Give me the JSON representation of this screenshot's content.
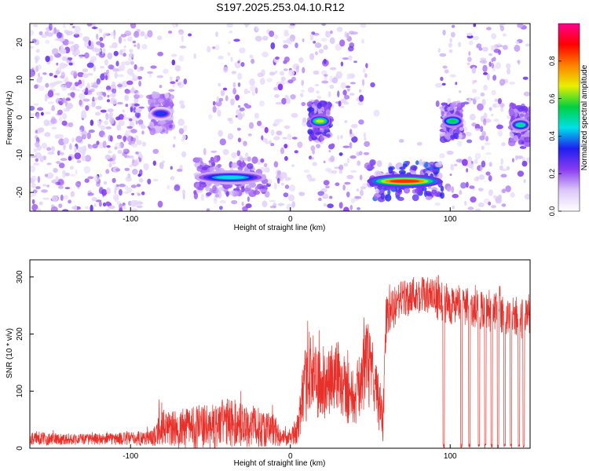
{
  "title": "S197.2025.253.04.10.R12",
  "chart_data": [
    {
      "type": "heatmap",
      "xlabel": "Height of straight line (km)",
      "ylabel": "Frequency (Hz)",
      "xlim": [
        -163,
        150
      ],
      "ylim": [
        -25,
        25
      ],
      "xticks": [
        -100,
        0,
        100
      ],
      "xtick_labels": [
        "-100",
        "0",
        "100"
      ],
      "yticks": [
        -20,
        -10,
        0,
        10,
        20
      ],
      "ytick_labels": [
        "-20",
        "-10",
        "0",
        "10",
        "20"
      ],
      "colorbar": {
        "label": "Normalized spectral amplitude",
        "range": [
          0,
          1
        ],
        "ticks": [
          0.0,
          0.2,
          0.4,
          0.6,
          0.8
        ],
        "tick_labels": [
          "0.0",
          "0.2",
          "0.4",
          "0.6",
          "0.8"
        ],
        "colors": [
          "#ffffff",
          "#dcc8f8",
          "#8a3cf0",
          "#1e1ef0",
          "#00e0e8",
          "#00d040",
          "#e8f000",
          "#ff8000",
          "#ff0000",
          "#ff0090"
        ]
      },
      "features": [
        {
          "x_range": [
            -163,
            -92
          ],
          "freq_range": [
            -25,
            25
          ],
          "amplitude": 0.2,
          "description": "broadband background noise"
        },
        {
          "x_range": [
            -88,
            -74
          ],
          "freq_center": 1,
          "amplitude": 0.35
        },
        {
          "x_range": [
            -60,
            -15
          ],
          "freq_center": -16,
          "amplitude": 0.45
        },
        {
          "x_range": [
            12,
            25
          ],
          "freq_center": -1,
          "amplitude": 0.65
        },
        {
          "x_range": [
            48,
            95
          ],
          "freq_center": -17,
          "amplitude": 0.85
        },
        {
          "x_range": [
            95,
            108
          ],
          "freq_center": -1,
          "amplitude": 0.55
        },
        {
          "x_range": [
            138,
            150
          ],
          "freq_center": -2,
          "amplitude": 0.5
        }
      ]
    },
    {
      "type": "line",
      "xlabel": "Height of straight line (km)",
      "ylabel": "SNR (10 * v/v)",
      "xlim": [
        -163,
        150
      ],
      "ylim": [
        0,
        330
      ],
      "xticks": [
        -100,
        0,
        100
      ],
      "xtick_labels": [
        "-100",
        "0",
        "100"
      ],
      "yticks": [
        0,
        100,
        200,
        300
      ],
      "ytick_labels": [
        "0",
        "100",
        "200",
        "300"
      ],
      "color": "#e8302a",
      "series": [
        {
          "name": "SNR",
          "x": [
            -163,
            -140,
            -120,
            -100,
            -85,
            -82,
            -78,
            -70,
            -60,
            -50,
            -40,
            -30,
            -20,
            -10,
            -5,
            0,
            5,
            8,
            12,
            15,
            20,
            25,
            30,
            35,
            40,
            45,
            48,
            50,
            55,
            58,
            60,
            65,
            70,
            80,
            90,
            95,
            100,
            105,
            110,
            115,
            120,
            125,
            130,
            135,
            140,
            145,
            150
          ],
          "mean": [
            18,
            17,
            17,
            18,
            20,
            45,
            38,
            35,
            42,
            40,
            50,
            45,
            40,
            35,
            20,
            18,
            40,
            95,
            150,
            130,
            110,
            120,
            140,
            110,
            90,
            130,
            160,
            140,
            90,
            50,
            230,
            250,
            265,
            275,
            265,
            260,
            255,
            255,
            250,
            250,
            245,
            240,
            240,
            235,
            235,
            230,
            240
          ],
          "amp": [
            12,
            10,
            10,
            12,
            15,
            35,
            30,
            35,
            40,
            38,
            45,
            40,
            35,
            30,
            15,
            12,
            30,
            60,
            80,
            70,
            60,
            60,
            70,
            60,
            50,
            60,
            80,
            70,
            50,
            40,
            40,
            35,
            35,
            35,
            35,
            35,
            35,
            35,
            35,
            35,
            35,
            35,
            35,
            35,
            35,
            35,
            35
          ]
        }
      ],
      "dropouts_to_zero_near_x": [
        96,
        107,
        112,
        118,
        122,
        126,
        130,
        134,
        138,
        143,
        146
      ]
    }
  ]
}
